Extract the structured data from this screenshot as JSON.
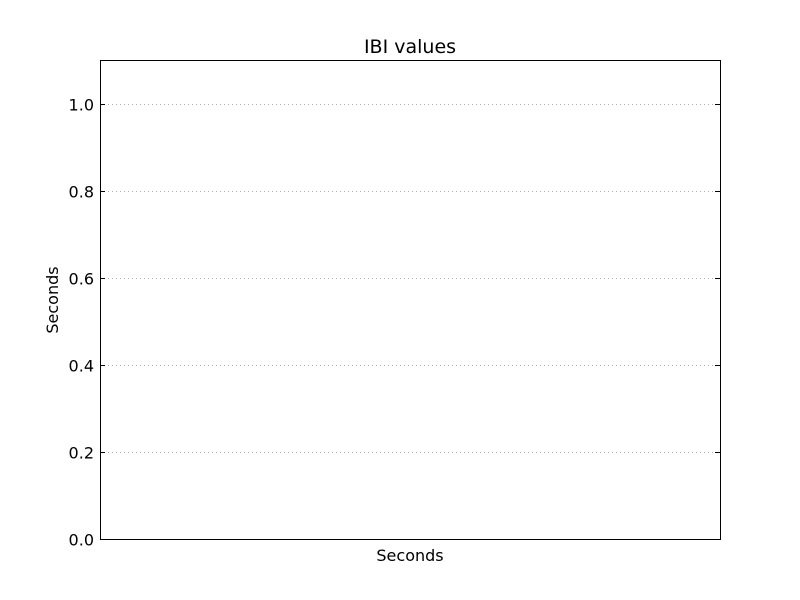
{
  "chart_data": {
    "type": "line",
    "title": "IBI values",
    "xlabel": "Seconds",
    "ylabel": "Seconds",
    "ylim": [
      0.0,
      1.1
    ],
    "yticks": [
      "0.0",
      "0.2",
      "0.4",
      "0.6",
      "0.8",
      "1.0"
    ],
    "xticks": [],
    "series": [],
    "grid": {
      "y": true,
      "x": false,
      "style": "dotted"
    },
    "legend": "none"
  },
  "colors": {
    "axes": "#000000",
    "grid": "#b0b0b0",
    "background": "#ffffff"
  }
}
